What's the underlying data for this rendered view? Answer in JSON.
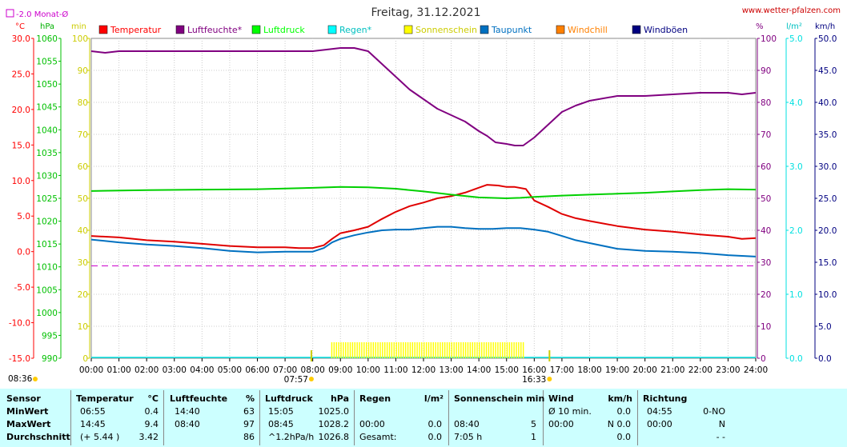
{
  "chart_data": {
    "type": "line",
    "title": "Freitag, 31.12.2021",
    "watermark": "www.wetter-pfalzen.com",
    "legend_extra": "-2.0 Monat-Ø",
    "x_ticks": [
      "00:00",
      "01:00",
      "02:00",
      "03:00",
      "04:00",
      "05:00",
      "06:00",
      "07:00",
      "08:00",
      "09:00",
      "10:00",
      "11:00",
      "12:00",
      "13:00",
      "14:00",
      "15:00",
      "16:00",
      "17:00",
      "18:00",
      "19:00",
      "20:00",
      "21:00",
      "22:00",
      "23:00",
      "24:00"
    ],
    "sunrise": "07:57",
    "sunset": "16:33",
    "moon": "08:36",
    "axes": {
      "temp": {
        "unit": "°C",
        "min": -15,
        "max": 30,
        "ticks": [
          "30.0",
          "25.0",
          "20.0",
          "15.0",
          "10.0",
          "5.0",
          "0.0",
          "-5.0",
          "-10.0",
          "-15.0"
        ],
        "color": "#ff0000"
      },
      "pressure": {
        "unit": "hPa",
        "min": 990,
        "max": 1060,
        "ticks": [
          "1060",
          "1055",
          "1050",
          "1045",
          "1040",
          "1035",
          "1030",
          "1025",
          "1020",
          "1015",
          "1010",
          "1005",
          "1000",
          "995",
          "990"
        ],
        "color": "#00c000"
      },
      "sun": {
        "unit": "min",
        "min": 0,
        "max": 100,
        "ticks": [
          "100",
          "90",
          "80",
          "70",
          "60",
          "50",
          "40",
          "30",
          "20",
          "10",
          "0"
        ],
        "color": "#cccc00"
      },
      "humidity": {
        "unit": "%",
        "min": 0,
        "max": 100,
        "ticks": [
          "100",
          "90",
          "80",
          "70",
          "60",
          "50",
          "40",
          "30",
          "20",
          "10",
          "0"
        ],
        "color": "#800080"
      },
      "rain": {
        "unit": "l/m²",
        "min": 0,
        "max": 5,
        "ticks": [
          "5.0",
          "4.0",
          "3.0",
          "2.0",
          "1.0",
          "0.0"
        ],
        "color": "#00e0e0"
      },
      "wind": {
        "unit": "km/h",
        "min": 0,
        "max": 50,
        "ticks": [
          "50.0",
          "45.0",
          "40.0",
          "35.0",
          "30.0",
          "25.0",
          "20.0",
          "15.0",
          "10.0",
          "5.0",
          "0.0"
        ],
        "color": "#000080"
      }
    },
    "legend": [
      {
        "name": "Temperatur",
        "color": "#ff0000"
      },
      {
        "name": "Luftfeuchte*",
        "color": "#800080"
      },
      {
        "name": "Luftdruck",
        "color": "#00ff00"
      },
      {
        "name": "Regen*",
        "color": "#00ffff"
      },
      {
        "name": "Sonnenschein",
        "color": "#ffff00"
      },
      {
        "name": "Taupunkt",
        "color": "#0070c0"
      },
      {
        "name": "Windchill",
        "color": "#ff8000"
      },
      {
        "name": "Windböen",
        "color": "#000080"
      }
    ],
    "monthly_avg_temp": -2.0,
    "sunshine_range": [
      "08:40",
      "15:40"
    ],
    "series": [
      {
        "name": "Temperatur",
        "axis": "temp",
        "color": "#e00000",
        "x": [
          0,
          1,
          2,
          3,
          4,
          5,
          6,
          7,
          7.5,
          8,
          8.4,
          8.7,
          9,
          9.5,
          10,
          10.5,
          11,
          11.5,
          12,
          12.5,
          13,
          13.5,
          14,
          14.3,
          14.7,
          15,
          15.3,
          15.7,
          16,
          16.5,
          17,
          17.5,
          18,
          19,
          20,
          21,
          22,
          23,
          23.5,
          24
        ],
        "y": [
          2.2,
          2.0,
          1.6,
          1.4,
          1.1,
          0.8,
          0.6,
          0.6,
          0.5,
          0.5,
          0.9,
          1.8,
          2.6,
          3.0,
          3.5,
          4.6,
          5.6,
          6.4,
          6.9,
          7.5,
          7.8,
          8.3,
          9.0,
          9.4,
          9.3,
          9.1,
          9.1,
          8.8,
          7.2,
          6.3,
          5.3,
          4.7,
          4.3,
          3.6,
          3.1,
          2.8,
          2.4,
          2.1,
          1.8,
          1.9
        ]
      },
      {
        "name": "Luftfeuchte*",
        "axis": "humidity",
        "color": "#800080",
        "x": [
          0,
          0.5,
          1,
          2,
          3,
          4,
          5,
          6,
          7,
          7.5,
          8,
          8.5,
          9,
          9.5,
          10,
          10.5,
          11,
          11.5,
          12,
          12.5,
          13,
          13.5,
          14,
          14.3,
          14.6,
          15,
          15.3,
          15.6,
          16,
          16.5,
          17,
          17.5,
          18,
          19,
          20,
          21,
          22,
          23,
          23.5,
          24
        ],
        "y": [
          96,
          95.5,
          96,
          96,
          96,
          96,
          96,
          96,
          96,
          96,
          96,
          96.5,
          97,
          97,
          96,
          92,
          88,
          84,
          81,
          78,
          76,
          74,
          71,
          69.5,
          67.5,
          67,
          66.5,
          66.5,
          69,
          73,
          77,
          79,
          80.5,
          82,
          82,
          82.5,
          83,
          83,
          82.5,
          83
        ]
      },
      {
        "name": "Luftdruck",
        "axis": "pressure",
        "color": "#00d000",
        "x": [
          0,
          2,
          4,
          6,
          8,
          9,
          10,
          11,
          12,
          13,
          14,
          15,
          15.5,
          16,
          17,
          18,
          19,
          20,
          21,
          22,
          23,
          24
        ],
        "y": [
          1026.6,
          1026.8,
          1026.9,
          1027.0,
          1027.3,
          1027.5,
          1027.4,
          1027.1,
          1026.5,
          1025.8,
          1025.2,
          1025.0,
          1025.1,
          1025.3,
          1025.6,
          1025.8,
          1026.0,
          1026.2,
          1026.5,
          1026.8,
          1027.0,
          1026.9
        ]
      },
      {
        "name": "Taupunkt",
        "axis": "temp",
        "color": "#0070c0",
        "x": [
          0,
          1,
          2,
          3,
          4,
          5,
          6,
          7,
          7.5,
          8,
          8.4,
          8.7,
          9,
          9.5,
          10,
          10.5,
          11,
          11.5,
          12,
          12.5,
          13,
          13.5,
          14,
          14.5,
          15,
          15.5,
          16,
          16.5,
          17,
          17.5,
          18,
          19,
          20,
          21,
          22,
          23,
          24
        ],
        "y": [
          1.7,
          1.3,
          1.0,
          0.8,
          0.5,
          0.1,
          -0.1,
          0.0,
          0.0,
          0.0,
          0.5,
          1.3,
          1.8,
          2.3,
          2.7,
          3.0,
          3.1,
          3.1,
          3.3,
          3.5,
          3.5,
          3.3,
          3.2,
          3.2,
          3.3,
          3.3,
          3.1,
          2.8,
          2.2,
          1.6,
          1.2,
          0.4,
          0.1,
          0.0,
          -0.2,
          -0.5,
          -0.7
        ]
      }
    ]
  },
  "stats": {
    "headers": {
      "sensor": "Sensor",
      "temp": "Temperatur",
      "temp_unit": "°C",
      "hum": "Luftfeuchte",
      "hum_unit": "%",
      "press": "Luftdruck",
      "press_unit": "hPa",
      "rain": "Regen",
      "rain_unit": "l/m²",
      "sun": "Sonnenschein min",
      "wind": "Wind",
      "wind_unit": "km/h",
      "dir": "Richtung"
    },
    "rows": [
      {
        "label": "MinWert",
        "temp_t": "06:55",
        "temp_v": "0.4",
        "hum_t": "14:40",
        "hum_v": "63",
        "press_t": "15:05",
        "press_v": "1025.0",
        "rain_t": "",
        "rain_v": "",
        "sun_t": "",
        "sun_v": "",
        "wind_t": "Ø 10 min.",
        "wind_v": "0.0",
        "dir_t": "04:55",
        "dir_v": "0-NO"
      },
      {
        "label": "MaxWert",
        "temp_t": "14:45",
        "temp_v": "9.4",
        "hum_t": "08:40",
        "hum_v": "97",
        "press_t": "08:45",
        "press_v": "1028.2",
        "rain_t": "00:00",
        "rain_v": "0.0",
        "sun_t": "08:40",
        "sun_v": "5",
        "wind_t": "00:00",
        "wind_v": "N 0.0",
        "dir_t": "00:00",
        "dir_v": "N"
      },
      {
        "label": "Durchschnitt",
        "temp_t": "(+ 5.44 )",
        "temp_v": "3.42",
        "hum_t": "",
        "hum_v": "86",
        "press_t": "^1.2hPa/h",
        "press_v": "1026.8",
        "rain_t": "Gesamt:",
        "rain_v": "0.0",
        "sun_t": "7:05 h",
        "sun_v": "1",
        "wind_t": "",
        "wind_v": "0.0",
        "dir_t": "",
        "dir_v": "- -"
      }
    ]
  }
}
